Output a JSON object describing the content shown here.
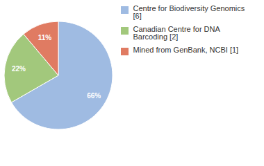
{
  "chart_data": {
    "type": "pie",
    "categories": [
      "Centre for Biodiversity Genomics [6]",
      "Canadian Centre for DNA Barcoding [2]",
      "Mined from GenBank, NCBI [1]"
    ],
    "values": [
      66,
      22,
      11
    ],
    "value_labels": [
      "66%",
      "22%",
      "11%"
    ],
    "colors": [
      "#9fbbe2",
      "#a2c87c",
      "#e07b62"
    ],
    "data_labels": true,
    "legend": "top-right"
  }
}
